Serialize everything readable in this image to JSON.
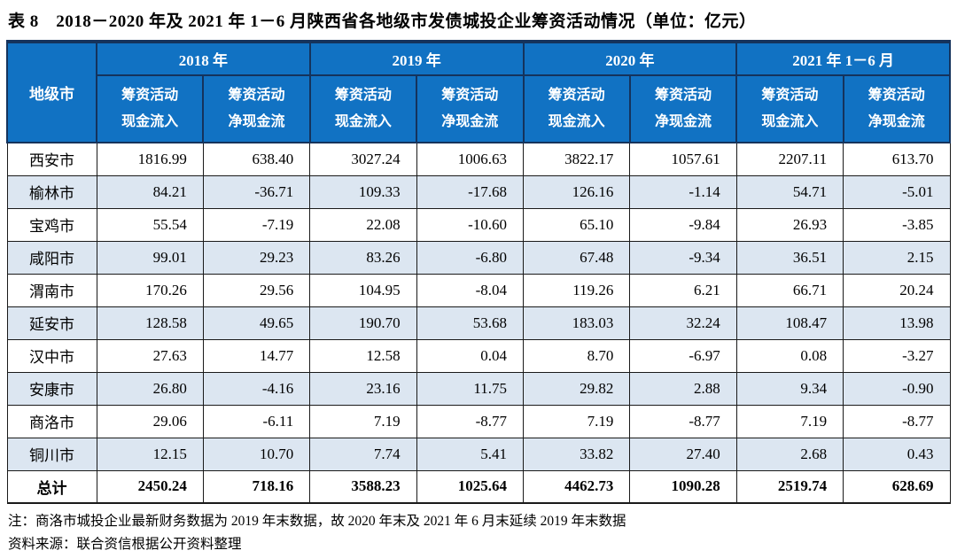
{
  "title": "表 8　2018－2020 年及 2021 年 1－6 月陕西省各地级市发债城投企业筹资活动情况（单位：亿元）",
  "colors": {
    "header_bg": "#1172c3",
    "header_border": "#15335c",
    "stripe": "#dce6f1",
    "body_border": "#1a1a1a"
  },
  "table": {
    "corner_header": "地级市",
    "year_groups": [
      "2018 年",
      "2019 年",
      "2020 年",
      "2021 年 1－6 月"
    ],
    "subheaders": [
      {
        "line1": "筹资活动",
        "line2": "现金流入"
      },
      {
        "line1": "筹资活动",
        "line2": "净现金流"
      },
      {
        "line1": "筹资活动",
        "line2": "现金流入"
      },
      {
        "line1": "筹资活动",
        "line2": "净现金流"
      },
      {
        "line1": "筹资活动",
        "line2": "现金流入"
      },
      {
        "line1": "筹资活动",
        "line2": "净现金流"
      },
      {
        "line1": "筹资活动",
        "line2": "现金流入"
      },
      {
        "line1": "筹资活动",
        "line2": "净现金流"
      }
    ],
    "rows": [
      {
        "city": "西安市",
        "values": [
          "1816.99",
          "638.40",
          "3027.24",
          "1006.63",
          "3822.17",
          "1057.61",
          "2207.11",
          "613.70"
        ],
        "stripe": false,
        "is_total": false
      },
      {
        "city": "榆林市",
        "values": [
          "84.21",
          "-36.71",
          "109.33",
          "-17.68",
          "126.16",
          "-1.14",
          "54.71",
          "-5.01"
        ],
        "stripe": true,
        "is_total": false
      },
      {
        "city": "宝鸡市",
        "values": [
          "55.54",
          "-7.19",
          "22.08",
          "-10.60",
          "65.10",
          "-9.84",
          "26.93",
          "-3.85"
        ],
        "stripe": false,
        "is_total": false
      },
      {
        "city": "咸阳市",
        "values": [
          "99.01",
          "29.23",
          "83.26",
          "-6.80",
          "67.48",
          "-9.34",
          "36.51",
          "2.15"
        ],
        "stripe": true,
        "is_total": false
      },
      {
        "city": "渭南市",
        "values": [
          "170.26",
          "29.56",
          "104.95",
          "-8.04",
          "119.26",
          "6.21",
          "66.71",
          "20.24"
        ],
        "stripe": false,
        "is_total": false
      },
      {
        "city": "延安市",
        "values": [
          "128.58",
          "49.65",
          "190.70",
          "53.68",
          "183.03",
          "32.24",
          "108.47",
          "13.98"
        ],
        "stripe": true,
        "is_total": false
      },
      {
        "city": "汉中市",
        "values": [
          "27.63",
          "14.77",
          "12.58",
          "0.04",
          "8.70",
          "-6.97",
          "0.08",
          "-3.27"
        ],
        "stripe": false,
        "is_total": false
      },
      {
        "city": "安康市",
        "values": [
          "26.80",
          "-4.16",
          "23.16",
          "11.75",
          "29.82",
          "2.88",
          "9.34",
          "-0.90"
        ],
        "stripe": true,
        "is_total": false
      },
      {
        "city": "商洛市",
        "values": [
          "29.06",
          "-6.11",
          "7.19",
          "-8.77",
          "7.19",
          "-8.77",
          "7.19",
          "-8.77"
        ],
        "stripe": false,
        "is_total": false
      },
      {
        "city": "铜川市",
        "values": [
          "12.15",
          "10.70",
          "7.74",
          "5.41",
          "33.82",
          "27.40",
          "2.68",
          "0.43"
        ],
        "stripe": true,
        "is_total": false
      },
      {
        "city": "总计",
        "values": [
          "2450.24",
          "718.16",
          "3588.23",
          "1025.64",
          "4462.73",
          "1090.28",
          "2519.74",
          "628.69"
        ],
        "stripe": false,
        "is_total": true
      }
    ]
  },
  "notes": {
    "note": "注：商洛市城投企业最新财务数据为 2019 年末数据，故 2020 年末及 2021 年 6 月末延续 2019 年末数据",
    "source": "资料来源：联合资信根据公开资料整理"
  }
}
